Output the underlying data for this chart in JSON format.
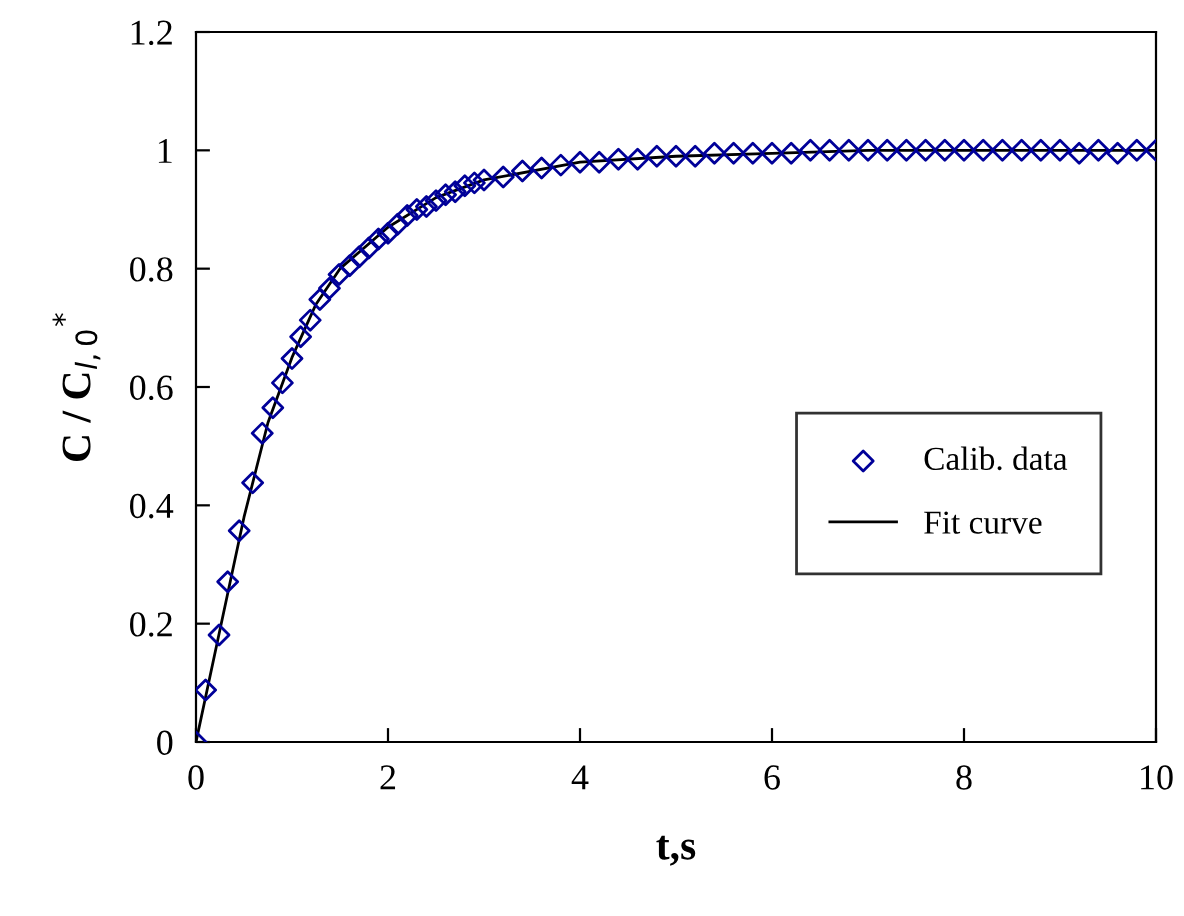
{
  "chart_data": {
    "type": "scatter",
    "xlabel": "t,s",
    "ylabel": "C / C$_{l,0}$$^{*}$",
    "xlim": [
      0,
      10
    ],
    "xticks": [
      0,
      2,
      4,
      6,
      8,
      10
    ],
    "ylim": [
      0,
      1.2
    ],
    "yticks": [
      0,
      {
        "value": 0.2,
        "label": "0.2"
      },
      {
        "value": 0.4,
        "label": "0.4"
      },
      {
        "value": 0.6,
        "label": "0.6"
      },
      {
        "value": 0.8,
        "label": "0.8"
      },
      1,
      {
        "value": 1.2,
        "label": "1.2"
      }
    ],
    "grid": false,
    "legend": "right",
    "series": [
      {
        "name": "Calib. data",
        "marker": "diamond",
        "color": "#000099",
        "x": [
          0,
          0.1,
          0.24,
          0.33,
          0.45,
          0.59,
          0.69,
          0.8,
          0.9,
          1.0,
          1.09,
          1.19,
          1.29,
          1.39,
          1.49,
          1.6,
          1.7,
          1.8,
          1.9,
          2.0,
          2.1,
          2.2,
          2.3,
          2.4,
          2.5,
          2.6,
          2.7,
          2.8,
          2.9,
          3.0,
          3.2,
          3.4,
          3.6,
          3.8,
          4.0,
          4.2,
          4.4,
          4.6,
          4.8,
          5.0,
          5.2,
          5.4,
          5.6,
          5.8,
          6.0,
          6.2,
          6.4,
          6.6,
          6.8,
          7.0,
          7.2,
          7.4,
          7.6,
          7.8,
          8.0,
          8.2,
          8.4,
          8.6,
          8.8,
          9.0,
          9.2,
          9.4,
          9.6,
          9.8,
          10.0
        ],
        "values": [
          0,
          0.088,
          0.181,
          0.271,
          0.357,
          0.438,
          0.522,
          0.565,
          0.607,
          0.648,
          0.685,
          0.713,
          0.748,
          0.767,
          0.79,
          0.805,
          0.82,
          0.835,
          0.85,
          0.86,
          0.875,
          0.89,
          0.9,
          0.905,
          0.915,
          0.925,
          0.93,
          0.94,
          0.945,
          0.95,
          0.955,
          0.965,
          0.97,
          0.975,
          0.98,
          0.98,
          0.985,
          0.985,
          0.99,
          0.99,
          0.99,
          0.995,
          0.995,
          0.995,
          0.995,
          0.995,
          1.0,
          1.0,
          1.0,
          1.0,
          1.0,
          1.0,
          1.0,
          1.0,
          1.0,
          1.0,
          1.0,
          1.0,
          1.0,
          1.0,
          0.995,
          1.0,
          0.995,
          1.0,
          1.0
        ]
      },
      {
        "name": "Fit curve",
        "type": "line",
        "marker": "none",
        "line_style": "solid",
        "color": "#000000",
        "x": [
          0,
          0.25,
          0.5,
          0.75,
          1.0,
          1.25,
          1.5,
          2.0,
          2.5,
          3.0,
          4.0,
          5.0,
          6.0,
          7.0,
          10.0
        ],
        "values": [
          0,
          0.19,
          0.38,
          0.54,
          0.65,
          0.74,
          0.8,
          0.87,
          0.92,
          0.95,
          0.98,
          0.99,
          0.995,
          1.0,
          1.0
        ]
      }
    ]
  }
}
